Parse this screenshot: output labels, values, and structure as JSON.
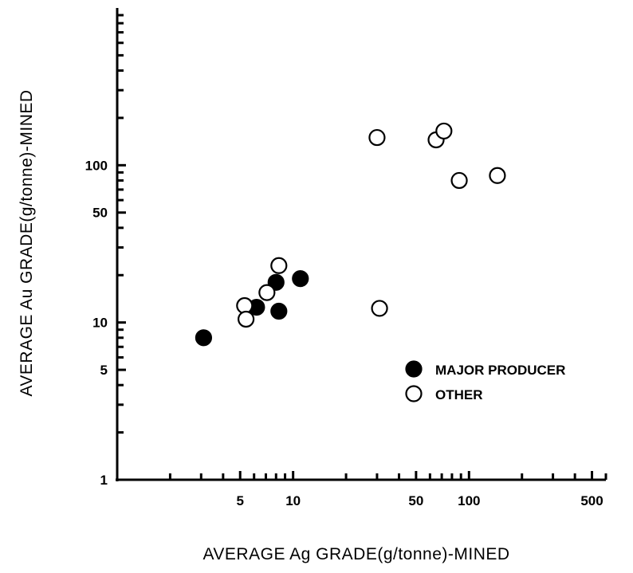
{
  "chart_data": {
    "type": "scatter",
    "title": "",
    "xlabel": "AVERAGE Ag GRADE(g/tonne)-MINED",
    "ylabel": "AVERAGE Au GRADE(g/tonne)-MINED",
    "x_scale": "log",
    "y_scale": "log",
    "xlim": [
      1,
      600
    ],
    "ylim": [
      1,
      1000
    ],
    "x_tick_labels": [
      "5",
      "10",
      "50",
      "100",
      "500"
    ],
    "x_tick_values": [
      5,
      10,
      50,
      100,
      500
    ],
    "y_tick_labels": [
      "1",
      "5",
      "10",
      "50",
      "100"
    ],
    "y_tick_values": [
      1,
      5,
      10,
      50,
      100
    ],
    "grid": false,
    "legend_position": "right",
    "series": [
      {
        "name": "MAJOR PRODUCER",
        "marker": "filled-circle",
        "points": [
          {
            "x": 3.1,
            "y": 8.0
          },
          {
            "x": 6.2,
            "y": 12.5
          },
          {
            "x": 8.0,
            "y": 18.0
          },
          {
            "x": 8.3,
            "y": 11.8
          },
          {
            "x": 11.0,
            "y": 19.0
          }
        ]
      },
      {
        "name": "OTHER",
        "marker": "open-circle",
        "points": [
          {
            "x": 5.3,
            "y": 12.8
          },
          {
            "x": 5.4,
            "y": 10.5
          },
          {
            "x": 7.1,
            "y": 15.5
          },
          {
            "x": 8.3,
            "y": 23.0
          },
          {
            "x": 30.0,
            "y": 150.0
          },
          {
            "x": 31.0,
            "y": 12.3
          },
          {
            "x": 65.0,
            "y": 145.0
          },
          {
            "x": 72.0,
            "y": 165.0
          },
          {
            "x": 88.0,
            "y": 80.0
          },
          {
            "x": 145.0,
            "y": 86.0
          }
        ]
      }
    ]
  }
}
